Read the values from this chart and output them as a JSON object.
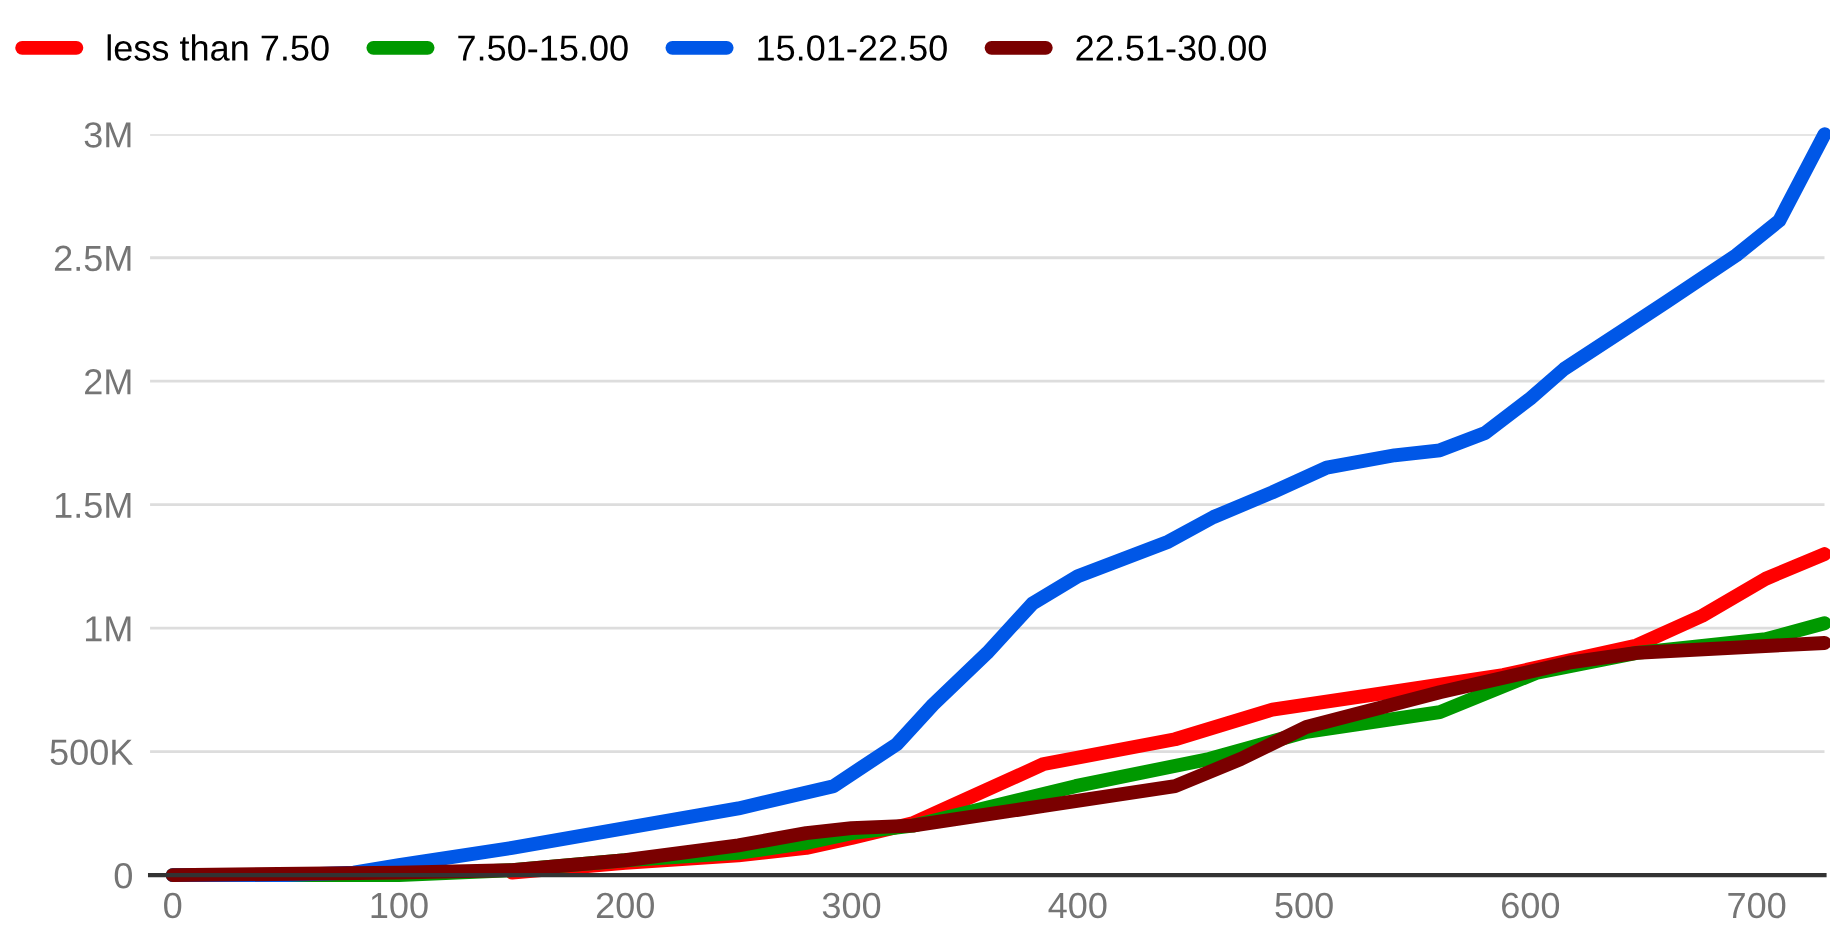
{
  "chart_data": {
    "type": "line",
    "xlim": [
      -10,
      730
    ],
    "ylim": [
      0,
      3000000
    ],
    "xticks": [
      0,
      100,
      200,
      300,
      400,
      500,
      600,
      700
    ],
    "yticks": [
      {
        "value": 0,
        "label": "0"
      },
      {
        "value": 500000,
        "label": "500K"
      },
      {
        "value": 1000000,
        "label": "1M"
      },
      {
        "value": 1500000,
        "label": "1.5M"
      },
      {
        "value": 2000000,
        "label": "2M"
      },
      {
        "value": 2500000,
        "label": "2.5M"
      },
      {
        "value": 3000000,
        "label": "3M"
      }
    ],
    "grid": "y",
    "legend": "top left",
    "marker": "none",
    "line_style": "solid",
    "series": [
      {
        "name": "less than 7.50",
        "color": "#ff0000",
        "x": [
          150,
          200,
          250,
          280,
          300,
          327,
          385,
          443,
          486,
          530,
          588,
          647,
          676,
          704,
          730
        ],
        "values": [
          10000,
          50000,
          80000,
          110000,
          150000,
          210000,
          450000,
          550000,
          670000,
          730000,
          810000,
          930000,
          1050000,
          1200000,
          1300000
        ]
      },
      {
        "name": "7.50-15.00",
        "color": "#009900",
        "x": [
          0,
          100,
          150,
          200,
          250,
          280,
          300,
          327,
          399,
          458,
          501,
          560,
          603,
          647,
          704,
          730
        ],
        "values": [
          0,
          0,
          20000,
          60000,
          90000,
          130000,
          170000,
          200000,
          360000,
          470000,
          580000,
          660000,
          820000,
          900000,
          955000,
          1020000
        ]
      },
      {
        "name": "15.01-22.50",
        "color": "#0057e7",
        "x": [
          0,
          50,
          80,
          100,
          150,
          200,
          250,
          292,
          320,
          336,
          360,
          380,
          400,
          420,
          440,
          460,
          486,
          510,
          540,
          560,
          580,
          600,
          615,
          640,
          660,
          691,
          710,
          730
        ],
        "values": [
          0,
          0,
          10000,
          40000,
          110000,
          190000,
          270000,
          360000,
          530000,
          690000,
          900000,
          1100000,
          1210000,
          1280000,
          1350000,
          1450000,
          1550000,
          1650000,
          1700000,
          1720000,
          1790000,
          1930000,
          2050000,
          2200000,
          2320000,
          2510000,
          2650000,
          3000000
        ]
      },
      {
        "name": "22.51-30.00",
        "color": "#7a0000",
        "x": [
          0,
          100,
          150,
          200,
          250,
          280,
          300,
          327,
          385,
          443,
          472,
          501,
          560,
          617,
          647,
          730
        ],
        "values": [
          0,
          10000,
          20000,
          60000,
          120000,
          170000,
          190000,
          200000,
          280000,
          360000,
          470000,
          600000,
          740000,
          860000,
          900000,
          940000
        ]
      }
    ]
  }
}
